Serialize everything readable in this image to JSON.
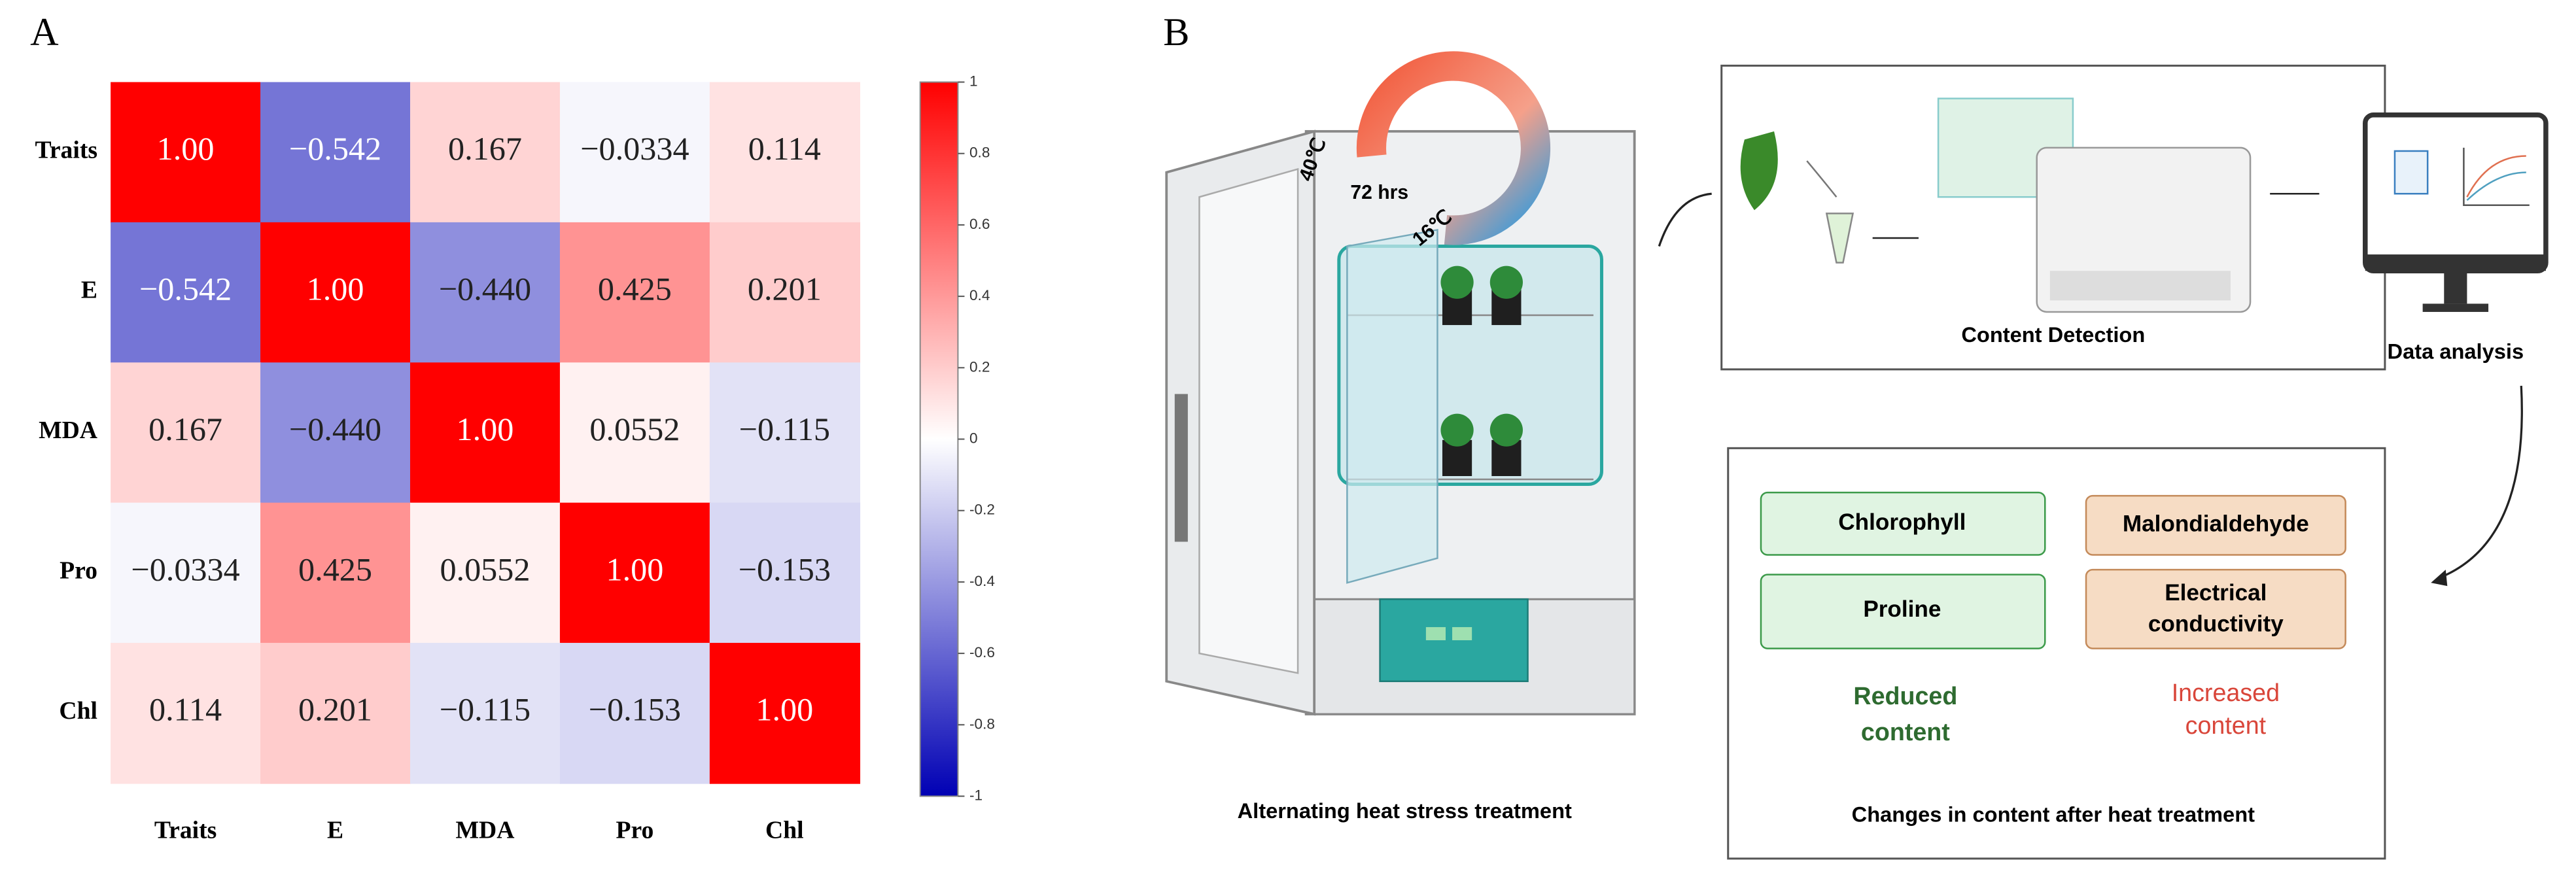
{
  "panel_labels": [
    "A",
    "B"
  ],
  "chart_data": {
    "type": "heatmap",
    "categories": [
      "Traits",
      "E",
      "MDA",
      "Pro",
      "Chl"
    ],
    "values": [
      [
        1,
        -0.542,
        0.167,
        -0.0334,
        0.114
      ],
      [
        -0.542,
        1,
        -0.44,
        0.425,
        0.201
      ],
      [
        0.167,
        -0.44,
        1,
        0.0552,
        -0.115
      ],
      [
        -0.0334,
        0.425,
        0.0552,
        1,
        -0.153
      ],
      [
        0.114,
        0.201,
        -0.115,
        -0.153,
        1
      ]
    ],
    "value_labels": [
      [
        "1.00",
        "−0.542",
        "0.167",
        "−0.0334",
        "0.114"
      ],
      [
        "−0.542",
        "1.00",
        "−0.440",
        "0.425",
        "0.201"
      ],
      [
        "0.167",
        "−0.440",
        "1.00",
        "0.0552",
        "−0.115"
      ],
      [
        "−0.0334",
        "0.425",
        "0.0552",
        "1.00",
        "−0.153"
      ],
      [
        "0.114",
        "0.201",
        "−0.115",
        "−0.153",
        "1.00"
      ]
    ],
    "zlim": [
      -1,
      1
    ],
    "zticks": [
      1,
      0.8,
      0.6,
      0.4,
      0.2,
      0,
      -0.2,
      -0.4,
      -0.6,
      -0.8,
      -1
    ],
    "colors": {
      "low": "#0000b4",
      "mid": "#ffffff",
      "high": "#ff0000"
    }
  },
  "diagram": {
    "cycle": {
      "duration": "72 hrs",
      "high": "40℃",
      "low": "16℃"
    },
    "treatment_caption": "Alternating heat stress  treatment",
    "detection_caption": "Content Detection",
    "analysis_caption": "Data analysis",
    "reduced": {
      "items": [
        "Chlorophyll",
        "Proline"
      ],
      "caption": [
        "Reduced",
        "content"
      ]
    },
    "increased": {
      "items": [
        "Malondialdehyde",
        [
          "Electrical",
          "conductivity"
        ]
      ],
      "caption": [
        "Increased",
        "content"
      ]
    },
    "changes_caption": "Changes in content after heat treatment"
  }
}
